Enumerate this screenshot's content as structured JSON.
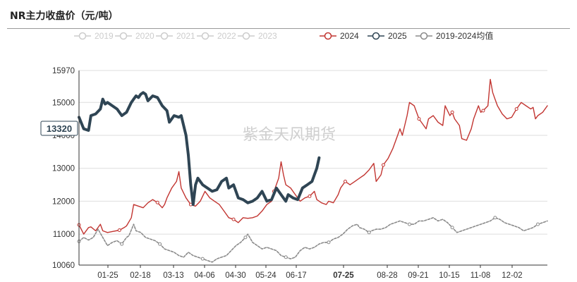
{
  "title": "NR主力收盘价（元/吨）",
  "watermark": "紫金天风期货",
  "chart_data": {
    "type": "line",
    "title": "NR主力收盘价（元/吨）",
    "x_ticks": [
      "01-25",
      "02-18",
      "03-13",
      "04-06",
      "04-30",
      "05-24",
      "06-17",
      "07-25",
      "08-28",
      "09-21",
      "10-15",
      "11-08",
      "12-02"
    ],
    "highlight_x": "07-25",
    "y_ticks": [
      10060,
      11000,
      12000,
      13000,
      14000,
      15000,
      15970
    ],
    "ylim": [
      10060,
      15970
    ],
    "x_index_range": [
      0,
      239
    ],
    "cursor_value": "13320",
    "grid": true,
    "legend_position": "top",
    "series": [
      {
        "name": "2019",
        "color": "#cccccc",
        "visible": false,
        "dash": "none",
        "values": []
      },
      {
        "name": "2020",
        "color": "#cccccc",
        "visible": false,
        "dash": "none",
        "values": []
      },
      {
        "name": "2021",
        "color": "#cccccc",
        "visible": false,
        "dash": "none",
        "values": []
      },
      {
        "name": "2022",
        "color": "#cccccc",
        "visible": false,
        "dash": "none",
        "values": []
      },
      {
        "name": "2023",
        "color": "#cccccc",
        "visible": false,
        "dash": "none",
        "values": []
      },
      {
        "name": "2024",
        "color": "#c23531",
        "visible": true,
        "dash": "none",
        "width": 1.4,
        "points": [
          [
            0,
            11280
          ],
          [
            4,
            11000
          ],
          [
            8,
            11200
          ],
          [
            10,
            11220
          ],
          [
            14,
            11100
          ],
          [
            18,
            11300
          ],
          [
            20,
            11100
          ],
          [
            24,
            11050
          ],
          [
            28,
            11080
          ],
          [
            34,
            11120
          ],
          [
            38,
            11200
          ],
          [
            40,
            11250
          ],
          [
            44,
            11500
          ],
          [
            46,
            11900
          ],
          [
            50,
            11850
          ],
          [
            54,
            11800
          ],
          [
            58,
            11950
          ],
          [
            62,
            12050
          ],
          [
            66,
            11960
          ],
          [
            70,
            11800
          ],
          [
            72,
            11900
          ],
          [
            74,
            12100
          ],
          [
            78,
            12400
          ],
          [
            82,
            12600
          ],
          [
            84,
            12900
          ],
          [
            86,
            12400
          ],
          [
            90,
            12100
          ],
          [
            94,
            11900
          ],
          [
            98,
            11850
          ],
          [
            102,
            12000
          ],
          [
            106,
            12300
          ],
          [
            110,
            12100
          ],
          [
            114,
            12000
          ],
          [
            118,
            11900
          ],
          [
            122,
            11700
          ],
          [
            126,
            11500
          ],
          [
            130,
            11450
          ],
          [
            134,
            11350
          ],
          [
            138,
            11500
          ],
          [
            142,
            11480
          ],
          [
            146,
            11500
          ],
          [
            150,
            11550
          ],
          [
            154,
            11700
          ],
          [
            158,
            11900
          ],
          [
            162,
            12000
          ],
          [
            164,
            12300
          ],
          [
            168,
            12700
          ],
          [
            170,
            13200
          ],
          [
            172,
            12800
          ],
          [
            174,
            12500
          ],
          [
            178,
            12400
          ],
          [
            182,
            12200
          ],
          [
            186,
            12000
          ],
          [
            190,
            12100
          ],
          [
            194,
            12150
          ],
          [
            198,
            12300
          ],
          [
            200,
            12050
          ],
          [
            204,
            11950
          ],
          [
            208,
            11900
          ],
          [
            210,
            12000
          ],
          [
            214,
            11950
          ],
          [
            218,
            12200
          ],
          [
            220,
            12400
          ],
          [
            224,
            12600
          ],
          [
            228,
            12500
          ],
          [
            232,
            12600
          ],
          [
            236,
            12700
          ],
          [
            240,
            12800
          ],
          [
            244,
            12950
          ],
          [
            248,
            13150
          ],
          [
            250,
            12600
          ],
          [
            254,
            12800
          ],
          [
            256,
            13100
          ],
          [
            260,
            13300
          ],
          [
            264,
            13600
          ],
          [
            268,
            14000
          ],
          [
            270,
            14200
          ],
          [
            272,
            14000
          ],
          [
            276,
            14600
          ],
          [
            278,
            15000
          ],
          [
            282,
            14900
          ],
          [
            286,
            14500
          ],
          [
            290,
            14300
          ],
          [
            292,
            14200
          ],
          [
            294,
            14500
          ],
          [
            298,
            14600
          ],
          [
            302,
            14400
          ],
          [
            306,
            14300
          ],
          [
            308,
            14900
          ],
          [
            312,
            14600
          ],
          [
            314,
            14700
          ],
          [
            316,
            14500
          ],
          [
            320,
            14300
          ],
          [
            322,
            13900
          ],
          [
            326,
            13850
          ],
          [
            330,
            14200
          ],
          [
            332,
            14500
          ],
          [
            336,
            14900
          ],
          [
            338,
            14700
          ],
          [
            340,
            14750
          ],
          [
            344,
            14900
          ],
          [
            346,
            15700
          ],
          [
            348,
            15300
          ],
          [
            350,
            15100
          ],
          [
            352,
            14900
          ],
          [
            356,
            14650
          ],
          [
            360,
            14500
          ],
          [
            364,
            14550
          ],
          [
            368,
            14800
          ],
          [
            372,
            15000
          ],
          [
            376,
            14900
          ],
          [
            380,
            14800
          ],
          [
            382,
            14850
          ],
          [
            384,
            14500
          ],
          [
            386,
            14600
          ],
          [
            390,
            14700
          ],
          [
            394,
            14900
          ]
        ]
      },
      {
        "name": "2025",
        "color": "#2f4554",
        "visible": true,
        "dash": "none",
        "width": 4,
        "points": [
          [
            0,
            14550
          ],
          [
            4,
            14200
          ],
          [
            8,
            14150
          ],
          [
            10,
            14600
          ],
          [
            14,
            14650
          ],
          [
            18,
            14800
          ],
          [
            20,
            15100
          ],
          [
            22,
            14950
          ],
          [
            24,
            15000
          ],
          [
            28,
            14900
          ],
          [
            32,
            14800
          ],
          [
            36,
            14600
          ],
          [
            40,
            14700
          ],
          [
            44,
            15000
          ],
          [
            46,
            15100
          ],
          [
            48,
            15200
          ],
          [
            50,
            15150
          ],
          [
            52,
            15250
          ],
          [
            54,
            15300
          ],
          [
            56,
            15250
          ],
          [
            58,
            15050
          ],
          [
            62,
            15200
          ],
          [
            66,
            15150
          ],
          [
            70,
            14900
          ],
          [
            74,
            14750
          ],
          [
            76,
            14400
          ],
          [
            80,
            14600
          ],
          [
            84,
            14550
          ],
          [
            86,
            14600
          ],
          [
            88,
            14300
          ],
          [
            90,
            14000
          ],
          [
            92,
            13400
          ],
          [
            94,
            12500
          ],
          [
            96,
            11900
          ],
          [
            98,
            12500
          ],
          [
            100,
            12700
          ],
          [
            104,
            12500
          ],
          [
            108,
            12400
          ],
          [
            112,
            12300
          ],
          [
            116,
            12350
          ],
          [
            120,
            12600
          ],
          [
            124,
            12700
          ],
          [
            126,
            12400
          ],
          [
            130,
            12500
          ],
          [
            132,
            12300
          ],
          [
            134,
            12100
          ],
          [
            138,
            12050
          ],
          [
            142,
            11950
          ],
          [
            146,
            12000
          ],
          [
            150,
            12100
          ],
          [
            154,
            12300
          ],
          [
            158,
            12000
          ],
          [
            162,
            12050
          ],
          [
            166,
            12400
          ],
          [
            170,
            12200
          ],
          [
            174,
            12000
          ],
          [
            176,
            12200
          ],
          [
            180,
            12100
          ],
          [
            184,
            12050
          ],
          [
            188,
            12400
          ],
          [
            192,
            12500
          ],
          [
            196,
            12600
          ],
          [
            198,
            12800
          ],
          [
            200,
            13000
          ],
          [
            202,
            13320
          ]
        ]
      },
      {
        "name": "2019-2024均值",
        "color": "#8a8a8a",
        "visible": true,
        "dash": "3,2",
        "width": 1.6,
        "points": [
          [
            0,
            10780
          ],
          [
            4,
            10900
          ],
          [
            8,
            10820
          ],
          [
            12,
            10900
          ],
          [
            16,
            11150
          ],
          [
            20,
            10900
          ],
          [
            24,
            10650
          ],
          [
            28,
            10750
          ],
          [
            32,
            10800
          ],
          [
            36,
            10700
          ],
          [
            40,
            10900
          ],
          [
            42,
            10950
          ],
          [
            46,
            11300
          ],
          [
            48,
            11100
          ],
          [
            52,
            11050
          ],
          [
            56,
            10900
          ],
          [
            60,
            10850
          ],
          [
            64,
            10800
          ],
          [
            68,
            10700
          ],
          [
            72,
            10550
          ],
          [
            76,
            10500
          ],
          [
            80,
            10450
          ],
          [
            84,
            10350
          ],
          [
            88,
            10300
          ],
          [
            92,
            10450
          ],
          [
            96,
            10350
          ],
          [
            100,
            10300
          ],
          [
            104,
            10250
          ],
          [
            108,
            10200
          ],
          [
            112,
            10150
          ],
          [
            116,
            10250
          ],
          [
            120,
            10300
          ],
          [
            124,
            10350
          ],
          [
            128,
            10500
          ],
          [
            132,
            10650
          ],
          [
            136,
            10750
          ],
          [
            140,
            10900
          ],
          [
            142,
            11000
          ],
          [
            146,
            10750
          ],
          [
            150,
            10650
          ],
          [
            154,
            10550
          ],
          [
            158,
            10600
          ],
          [
            162,
            10550
          ],
          [
            166,
            10500
          ],
          [
            170,
            10350
          ],
          [
            174,
            10300
          ],
          [
            178,
            10250
          ],
          [
            182,
            10300
          ],
          [
            186,
            10500
          ],
          [
            190,
            10600
          ],
          [
            194,
            10550
          ],
          [
            198,
            10600
          ],
          [
            202,
            10700
          ],
          [
            206,
            10750
          ],
          [
            210,
            10750
          ],
          [
            214,
            10850
          ],
          [
            218,
            10900
          ],
          [
            222,
            11000
          ],
          [
            226,
            11150
          ],
          [
            230,
            11250
          ],
          [
            234,
            11300
          ],
          [
            236,
            11200
          ],
          [
            240,
            11150
          ],
          [
            244,
            11050
          ],
          [
            246,
            11100
          ],
          [
            250,
            11150
          ],
          [
            254,
            11150
          ],
          [
            258,
            11200
          ],
          [
            262,
            11300
          ],
          [
            266,
            11350
          ],
          [
            270,
            11400
          ],
          [
            274,
            11350
          ],
          [
            278,
            11300
          ],
          [
            282,
            11300
          ],
          [
            286,
            11400
          ],
          [
            290,
            11400
          ],
          [
            294,
            11450
          ],
          [
            298,
            11500
          ],
          [
            302,
            11400
          ],
          [
            306,
            11450
          ],
          [
            310,
            11350
          ],
          [
            314,
            11200
          ],
          [
            318,
            11050
          ],
          [
            322,
            11100
          ],
          [
            326,
            11150
          ],
          [
            330,
            11200
          ],
          [
            334,
            11250
          ],
          [
            338,
            11300
          ],
          [
            342,
            11350
          ],
          [
            346,
            11400
          ],
          [
            350,
            11500
          ],
          [
            354,
            11450
          ],
          [
            358,
            11350
          ],
          [
            362,
            11300
          ],
          [
            366,
            11250
          ],
          [
            370,
            11200
          ],
          [
            374,
            11100
          ],
          [
            378,
            11150
          ],
          [
            382,
            11200
          ],
          [
            386,
            11300
          ],
          [
            390,
            11350
          ],
          [
            394,
            11400
          ]
        ]
      }
    ]
  },
  "legend_icons": {
    "2019": "circle-line-icon",
    "2020": "circle-line-icon",
    "2021": "circle-line-icon",
    "2022": "circle-line-icon",
    "2023": "circle-line-icon",
    "2024": "circle-line-icon",
    "2025": "circle-line-icon",
    "2019-2024均值": "circle-line-icon"
  }
}
